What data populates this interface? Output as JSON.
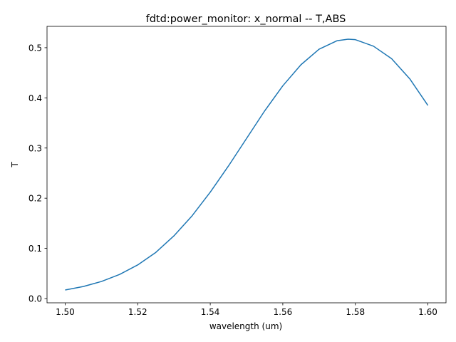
{
  "chart_data": {
    "type": "line",
    "title": "fdtd:power_monitor: x_normal -- T,ABS",
    "xlabel": "wavelength (um)",
    "ylabel": "T",
    "xlim": [
      1.495,
      1.605
    ],
    "ylim": [
      -0.0085,
      0.5425
    ],
    "xticks": [
      1.5,
      1.52,
      1.54,
      1.56,
      1.58,
      1.6
    ],
    "xtick_labels": [
      "1.50",
      "1.52",
      "1.54",
      "1.56",
      "1.58",
      "1.60"
    ],
    "yticks": [
      0.0,
      0.1,
      0.2,
      0.3,
      0.4,
      0.5
    ],
    "ytick_labels": [
      "0.0",
      "0.1",
      "0.2",
      "0.3",
      "0.4",
      "0.5"
    ],
    "grid": false,
    "legend": "none",
    "series": [
      {
        "color": "#1f77b4",
        "x": [
          1.5,
          1.505,
          1.51,
          1.515,
          1.52,
          1.525,
          1.53,
          1.535,
          1.54,
          1.545,
          1.55,
          1.555,
          1.56,
          1.565,
          1.57,
          1.575,
          1.578,
          1.58,
          1.585,
          1.59,
          1.595,
          1.6
        ],
        "y": [
          0.017,
          0.024,
          0.034,
          0.048,
          0.067,
          0.092,
          0.125,
          0.165,
          0.212,
          0.264,
          0.319,
          0.374,
          0.424,
          0.466,
          0.497,
          0.514,
          0.517,
          0.516,
          0.503,
          0.478,
          0.438,
          0.385
        ]
      }
    ]
  }
}
